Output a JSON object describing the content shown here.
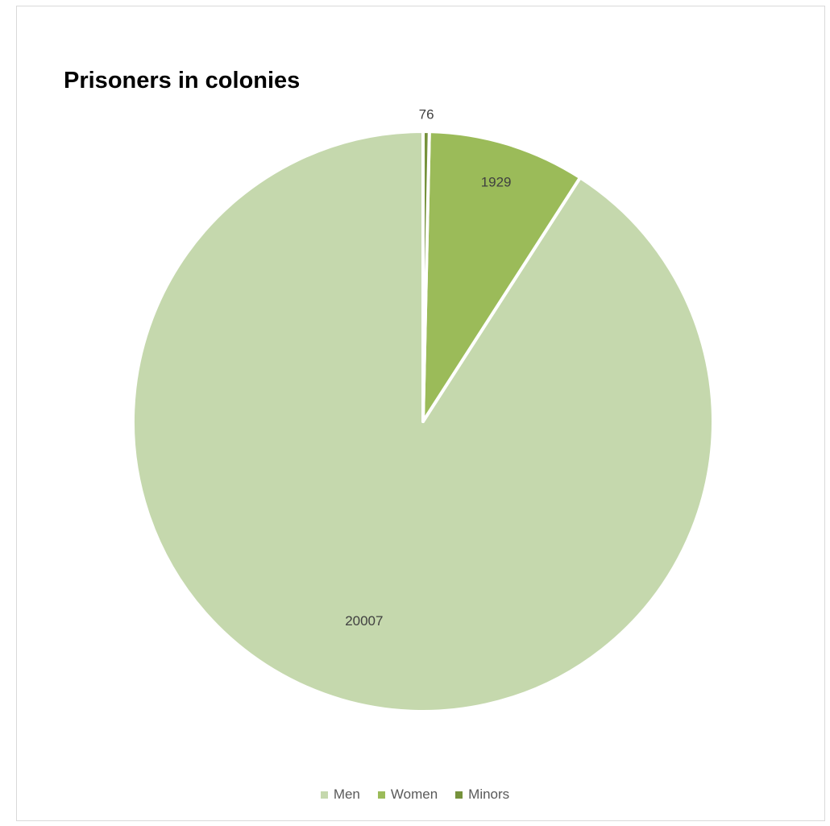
{
  "chart_data": {
    "type": "pie",
    "title": "Prisoners in colonies",
    "categories": [
      "Men",
      "Women",
      "Minors"
    ],
    "values": [
      20007,
      1929,
      76
    ],
    "colors": [
      "#c5d8ad",
      "#9bbb59",
      "#76923c"
    ],
    "data_labels": [
      "20007",
      "1929",
      "76"
    ],
    "start": "12 o'clock",
    "direction": "counterclockwise",
    "legend_position": "bottom"
  }
}
